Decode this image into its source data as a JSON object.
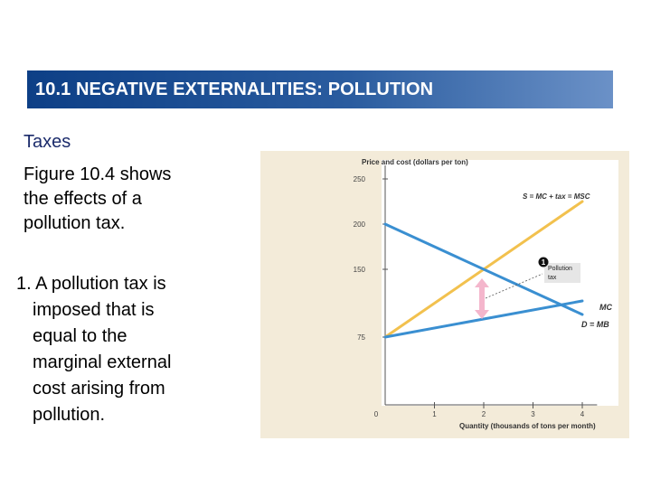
{
  "slide": {
    "title": "10.1 NEGATIVE EXTERNALITIES: POLLUTION",
    "subheading": "Taxes",
    "paragraph_lines": [
      "Figure 10.4 shows",
      "the effects of a",
      "pollution tax."
    ],
    "point_number": "1.",
    "point_lines": [
      "A pollution tax is",
      "imposed that is",
      "equal to the",
      "marginal external",
      "cost arising from",
      "pollution."
    ]
  },
  "colors": {
    "title_bar": "#0d3f86",
    "supply_line": "#f2c14e",
    "demand_line": "#3a8fd1",
    "mc_line": "#3a8fd1",
    "tax_arrow": "#f4b6cc",
    "figure_background": "#f3ebd9"
  },
  "chart_data": {
    "type": "line",
    "ylabel": "Price and cost (dollars per ton)",
    "xlabel": "Quantity (thousands of tons per month)",
    "xlim": [
      0,
      4.3
    ],
    "ylim": [
      0,
      265
    ],
    "x_ticks": [
      0,
      1,
      2,
      3,
      4
    ],
    "x_tick_labels": [
      "0",
      "1",
      "2",
      "3",
      "4"
    ],
    "y_ticks": [
      75,
      150,
      200,
      250
    ],
    "y_tick_labels": [
      "75",
      "150",
      "200",
      "250"
    ],
    "grid": false,
    "series": [
      {
        "name": "S = MC + tax = MSC",
        "color": "#f2c14e",
        "x": [
          0,
          4
        ],
        "y": [
          75,
          225
        ]
      },
      {
        "name": "D = MB",
        "color": "#3a8fd1",
        "x": [
          0,
          4
        ],
        "y": [
          200,
          100
        ]
      },
      {
        "name": "MC",
        "color": "#3a8fd1",
        "x": [
          0,
          4
        ],
        "y": [
          75,
          115
        ]
      }
    ],
    "annotations": {
      "marker": "1",
      "callout_lines": [
        "Pollution",
        "tax"
      ],
      "tax_arrow_x": 2,
      "tax_arrow_from": 95,
      "tax_arrow_to": 140
    }
  }
}
